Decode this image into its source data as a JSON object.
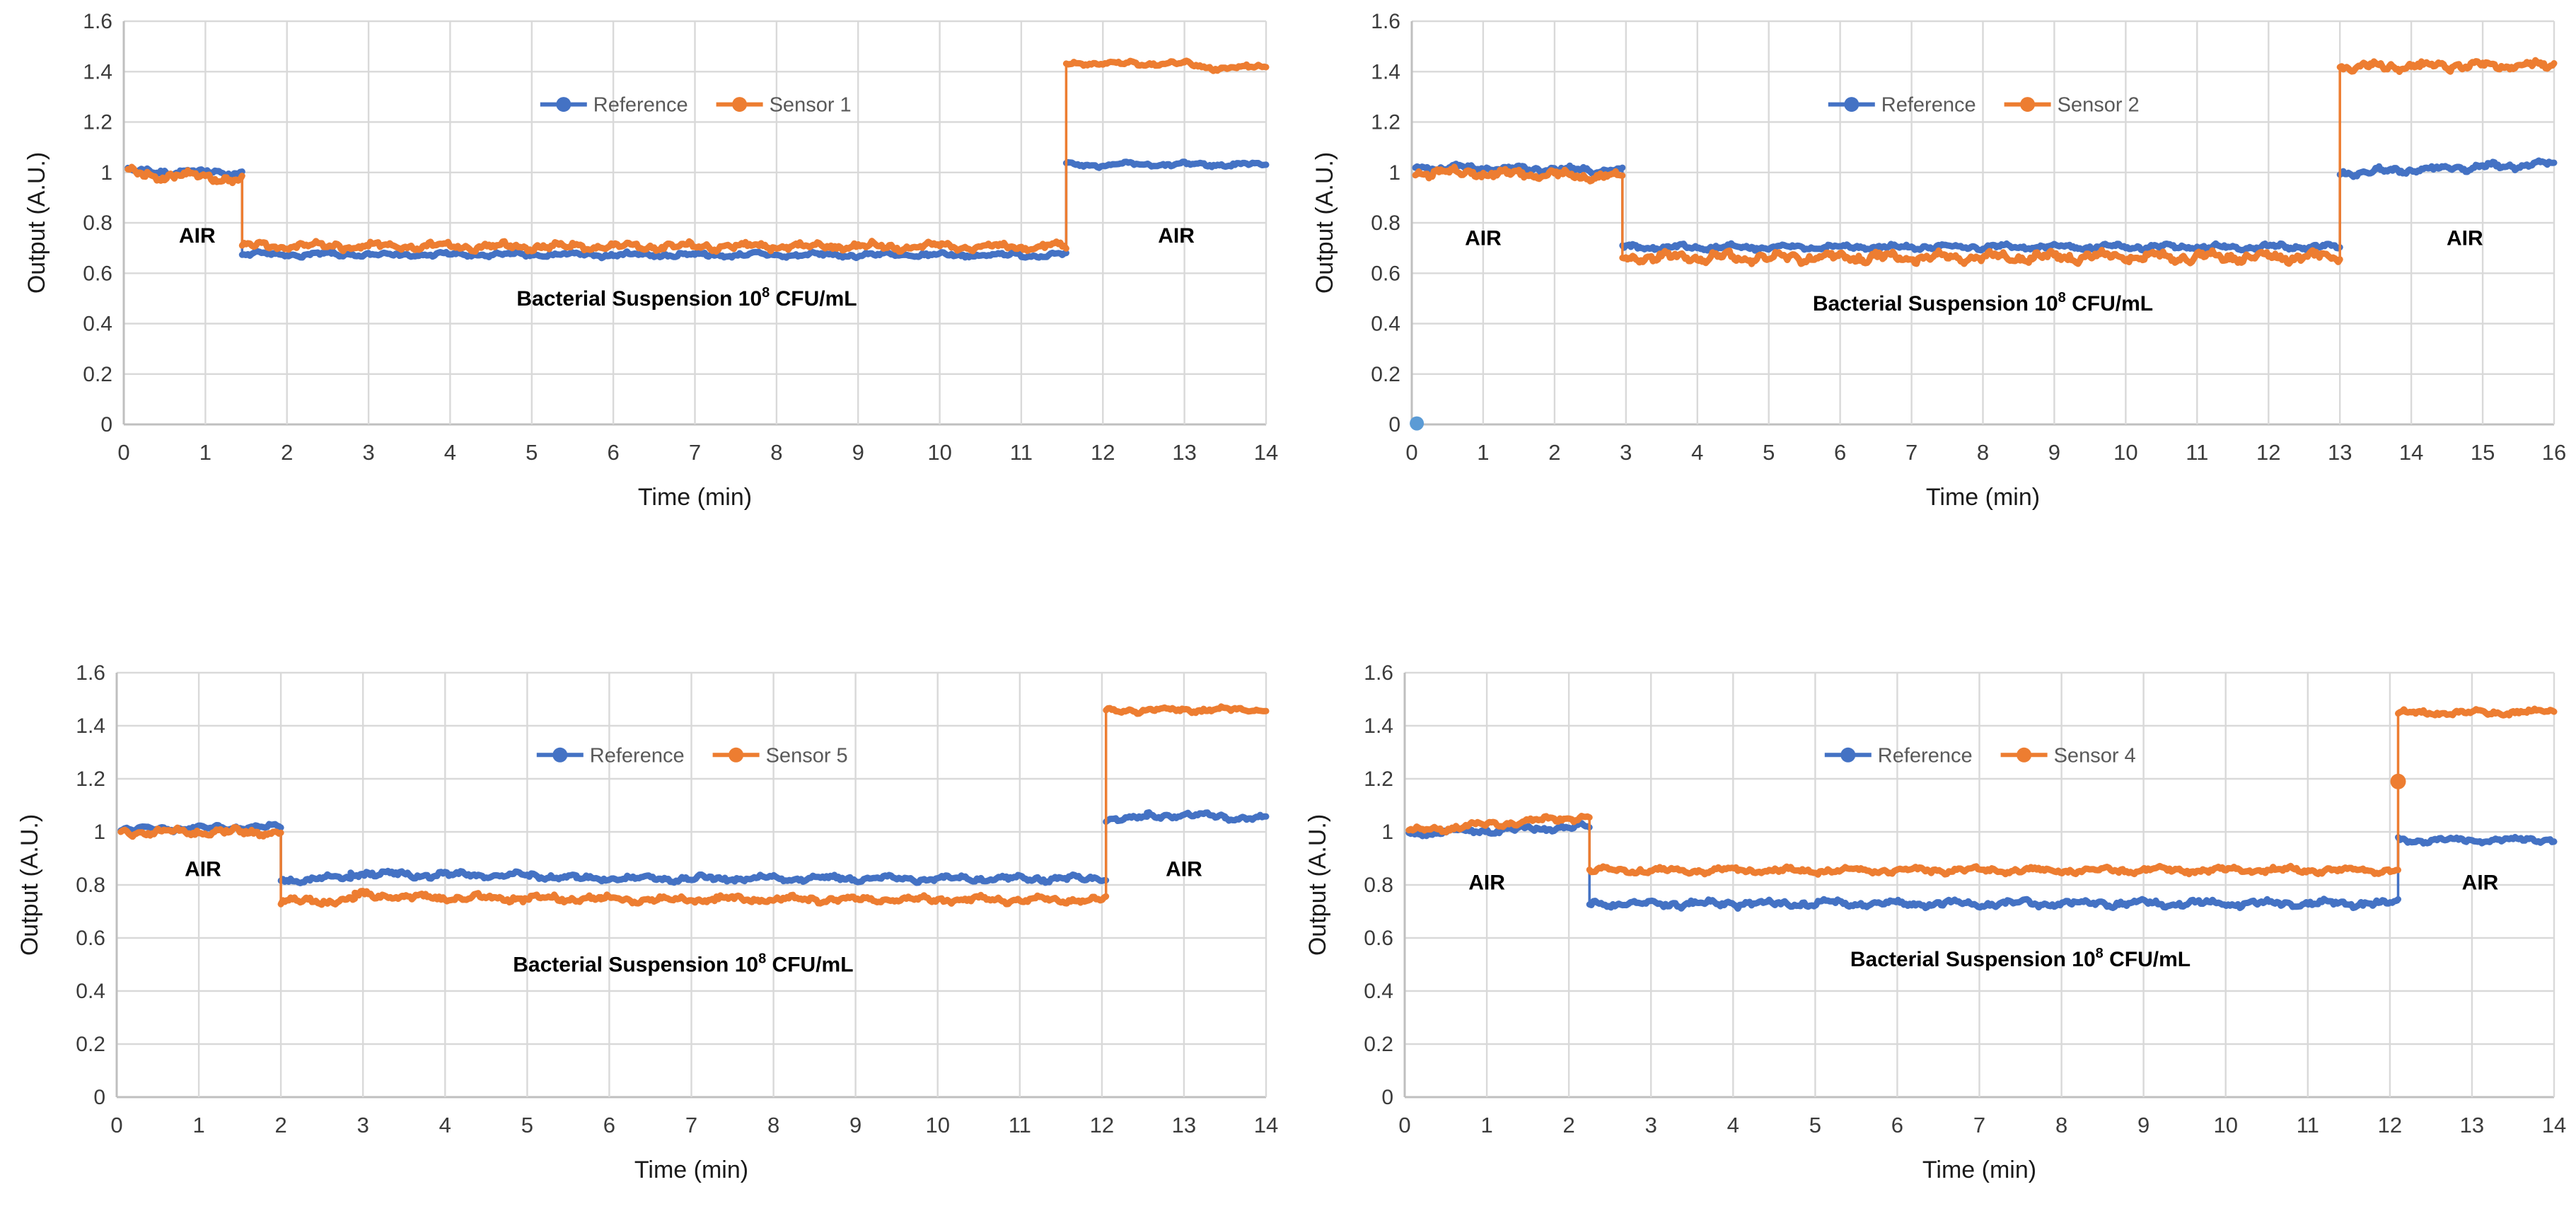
{
  "colors": {
    "blue": "#4472C4",
    "orange": "#ED7D31",
    "outlier_blue": "#5B9BD5",
    "grid": "#D9D9D9",
    "axis": "#BFBFBF",
    "tick_text": "#3B3B3B",
    "axis_title_text": "#1A1A1A",
    "legend_text": "#595959",
    "annotation": "#000000",
    "background": "#FFFFFF"
  },
  "chart_data": [
    {
      "type": "line",
      "name": "sensor-1-chart",
      "xlabel": "Time (min)",
      "ylabel": "Output (A.U.)",
      "xlim": [
        0,
        14
      ],
      "xtick_step": 1,
      "ylim": [
        0,
        1.6
      ],
      "ytick_step": 0.2,
      "xticks": [
        0,
        1,
        2,
        3,
        4,
        5,
        6,
        7,
        8,
        9,
        10,
        11,
        12,
        13,
        14
      ],
      "yticks": [
        0,
        0.2,
        0.4,
        0.6,
        0.8,
        1,
        1.2,
        1.4,
        1.6
      ],
      "legend_y": 1.27,
      "series": [
        {
          "name": "Reference",
          "color_key": "blue",
          "segments": [
            {
              "x": [
                0.05,
                1.45
              ],
              "y": [
                1.005,
                1.0
              ],
              "noise": 0.012
            },
            {
              "x": [
                1.45,
                11.55
              ],
              "y": [
                0.674,
                0.672
              ],
              "noise": 0.01
            },
            {
              "x": [
                11.55,
                14.0
              ],
              "y": [
                1.03,
                1.032
              ],
              "noise": 0.009
            }
          ]
        },
        {
          "name": "Sensor 1",
          "color_key": "orange",
          "segments": [
            {
              "x": [
                0.05,
                1.45
              ],
              "y": [
                0.995,
                0.975
              ],
              "noise": 0.02
            },
            {
              "x": [
                1.45,
                11.55
              ],
              "y": [
                0.708,
                0.706
              ],
              "noise": 0.016
            },
            {
              "x": [
                11.55,
                13.0
              ],
              "y": [
                1.434,
                1.432
              ],
              "noise": 0.01
            },
            {
              "x": [
                13.0,
                13.45
              ],
              "y": [
                1.432,
                1.412
              ],
              "noise": 0.01
            },
            {
              "x": [
                13.45,
                14.0
              ],
              "y": [
                1.412,
                1.422
              ],
              "noise": 0.01
            }
          ]
        }
      ],
      "points": [],
      "annotations": [
        {
          "text": "AIR",
          "x": 0.9,
          "y": 0.75
        },
        {
          "text": "AIR",
          "x": 12.9,
          "y": 0.75
        },
        {
          "prefix": "Bacterial Suspension 10",
          "sup": "8",
          "suffix": " CFU/mL",
          "x": 6.9,
          "y": 0.5
        }
      ]
    },
    {
      "type": "line",
      "name": "sensor-2-chart",
      "xlabel": "Time (min)",
      "ylabel": "Output (A.U.)",
      "xlim": [
        0,
        16
      ],
      "xtick_step": 1,
      "ylim": [
        0,
        1.6
      ],
      "ytick_step": 0.2,
      "xticks": [
        0,
        1,
        2,
        3,
        4,
        5,
        6,
        7,
        8,
        9,
        10,
        11,
        12,
        13,
        14,
        15,
        16
      ],
      "yticks": [
        0,
        0.2,
        0.4,
        0.6,
        0.8,
        1,
        1.2,
        1.4,
        1.6
      ],
      "legend_y": 1.27,
      "series": [
        {
          "name": "Reference",
          "color_key": "blue",
          "segments": [
            {
              "x": [
                0.05,
                2.95
              ],
              "y": [
                1.022,
                1.008
              ],
              "noise": 0.013
            },
            {
              "x": [
                2.95,
                13.0
              ],
              "y": [
                0.703,
                0.705
              ],
              "noise": 0.011
            },
            {
              "x": [
                13.0,
                16.0
              ],
              "y": [
                0.998,
                1.035
              ],
              "noise": 0.014
            }
          ]
        },
        {
          "name": "Sensor 2",
          "color_key": "orange",
          "segments": [
            {
              "x": [
                0.05,
                2.95
              ],
              "y": [
                1.003,
                0.983
              ],
              "noise": 0.018
            },
            {
              "x": [
                2.95,
                13.0
              ],
              "y": [
                0.663,
                0.665
              ],
              "noise": 0.021
            },
            {
              "x": [
                13.0,
                16.0
              ],
              "y": [
                1.421,
                1.425
              ],
              "noise": 0.018
            }
          ]
        }
      ],
      "points": [
        {
          "x": 0.07,
          "y": 0.004,
          "color_key": "outlier_blue",
          "r": 10
        }
      ],
      "annotations": [
        {
          "text": "AIR",
          "x": 1.0,
          "y": 0.74
        },
        {
          "text": "AIR",
          "x": 14.75,
          "y": 0.74
        },
        {
          "prefix": "Bacterial Suspension 10",
          "sup": "8",
          "suffix": " CFU/mL",
          "x": 8.0,
          "y": 0.48
        }
      ]
    },
    {
      "type": "line",
      "name": "sensor-5-chart",
      "xlabel": "Time (min)",
      "ylabel": "Output (A.U.)",
      "xlim": [
        0,
        14
      ],
      "xtick_step": 1,
      "ylim": [
        0,
        1.6
      ],
      "ytick_step": 0.2,
      "xticks": [
        0,
        1,
        2,
        3,
        4,
        5,
        6,
        7,
        8,
        9,
        10,
        11,
        12,
        13,
        14
      ],
      "yticks": [
        0,
        0.2,
        0.4,
        0.6,
        0.8,
        1,
        1.2,
        1.4,
        1.6
      ],
      "legend_y": 1.29,
      "series": [
        {
          "name": "Reference",
          "color_key": "blue",
          "segments": [
            {
              "x": [
                0.05,
                2.0
              ],
              "y": [
                1.008,
                1.02
              ],
              "noise": 0.01
            },
            {
              "x": [
                2.0,
                2.85
              ],
              "y": [
                0.82,
                0.825
              ],
              "noise": 0.013
            },
            {
              "x": [
                2.85,
                3.4
              ],
              "y": [
                0.845,
                0.843
              ],
              "noise": 0.013
            },
            {
              "x": [
                3.4,
                5.6
              ],
              "y": [
                0.84,
                0.832
              ],
              "noise": 0.013
            },
            {
              "x": [
                5.6,
                12.05
              ],
              "y": [
                0.825,
                0.823
              ],
              "noise": 0.012
            },
            {
              "x": [
                12.05,
                12.55
              ],
              "y": [
                1.048,
                1.052
              ],
              "noise": 0.01
            },
            {
              "x": [
                12.55,
                13.5
              ],
              "y": [
                1.062,
                1.06
              ],
              "noise": 0.011
            },
            {
              "x": [
                13.5,
                14.0
              ],
              "y": [
                1.052,
                1.05
              ],
              "noise": 0.01
            }
          ]
        },
        {
          "name": "Sensor 5",
          "color_key": "orange",
          "segments": [
            {
              "x": [
                0.05,
                2.0
              ],
              "y": [
                1.0,
                0.998
              ],
              "noise": 0.015
            },
            {
              "x": [
                2.0,
                2.9
              ],
              "y": [
                0.737,
                0.742
              ],
              "noise": 0.016
            },
            {
              "x": [
                2.9,
                3.5
              ],
              "y": [
                0.762,
                0.758
              ],
              "noise": 0.016
            },
            {
              "x": [
                3.5,
                5.9
              ],
              "y": [
                0.752,
                0.748
              ],
              "noise": 0.015
            },
            {
              "x": [
                5.9,
                12.05
              ],
              "y": [
                0.746,
                0.744
              ],
              "noise": 0.013
            },
            {
              "x": [
                12.05,
                14.0
              ],
              "y": [
                1.458,
                1.46
              ],
              "noise": 0.01
            }
          ]
        }
      ],
      "points": [],
      "annotations": [
        {
          "text": "AIR",
          "x": 1.05,
          "y": 0.86
        },
        {
          "text": "AIR",
          "x": 13.0,
          "y": 0.86
        },
        {
          "prefix": "Bacterial Suspension 10",
          "sup": "8",
          "suffix": " CFU/mL",
          "x": 6.9,
          "y": 0.5
        }
      ]
    },
    {
      "type": "line",
      "name": "sensor-4-chart",
      "xlabel": "Time (min)",
      "ylabel": "Output (A.U.)",
      "xlim": [
        0,
        14
      ],
      "xtick_step": 1,
      "ylim": [
        0,
        1.6
      ],
      "ytick_step": 0.2,
      "xticks": [
        0,
        1,
        2,
        3,
        4,
        5,
        6,
        7,
        8,
        9,
        10,
        11,
        12,
        13,
        14
      ],
      "yticks": [
        0,
        0.2,
        0.4,
        0.6,
        0.8,
        1,
        1.2,
        1.4,
        1.6
      ],
      "legend_y": 1.29,
      "series": [
        {
          "name": "Reference",
          "color_key": "blue",
          "segments": [
            {
              "x": [
                0.05,
                2.25
              ],
              "y": [
                0.993,
                1.02
              ],
              "noise": 0.012
            },
            {
              "x": [
                2.25,
                12.1
              ],
              "y": [
                0.729,
                0.731
              ],
              "noise": 0.014
            },
            {
              "x": [
                12.1,
                14.0
              ],
              "y": [
                0.968,
                0.97
              ],
              "noise": 0.011
            }
          ]
        },
        {
          "name": "Sensor 4",
          "color_key": "orange",
          "segments": [
            {
              "x": [
                0.05,
                2.25
              ],
              "y": [
                1.003,
                1.058
              ],
              "noise": 0.013
            },
            {
              "x": [
                2.25,
                12.1
              ],
              "y": [
                0.854,
                0.856
              ],
              "noise": 0.012
            },
            {
              "x": [
                12.1,
                14.0
              ],
              "y": [
                1.448,
                1.452
              ],
              "noise": 0.011
            }
          ]
        }
      ],
      "points": [
        {
          "x": 12.1,
          "y": 1.19,
          "color_key": "orange",
          "r": 11
        }
      ],
      "annotations": [
        {
          "text": "AIR",
          "x": 1.0,
          "y": 0.81
        },
        {
          "text": "AIR",
          "x": 13.1,
          "y": 0.81
        },
        {
          "prefix": "Bacterial Suspension 10",
          "sup": "8",
          "suffix": " CFU/mL",
          "x": 7.5,
          "y": 0.52
        }
      ]
    }
  ]
}
